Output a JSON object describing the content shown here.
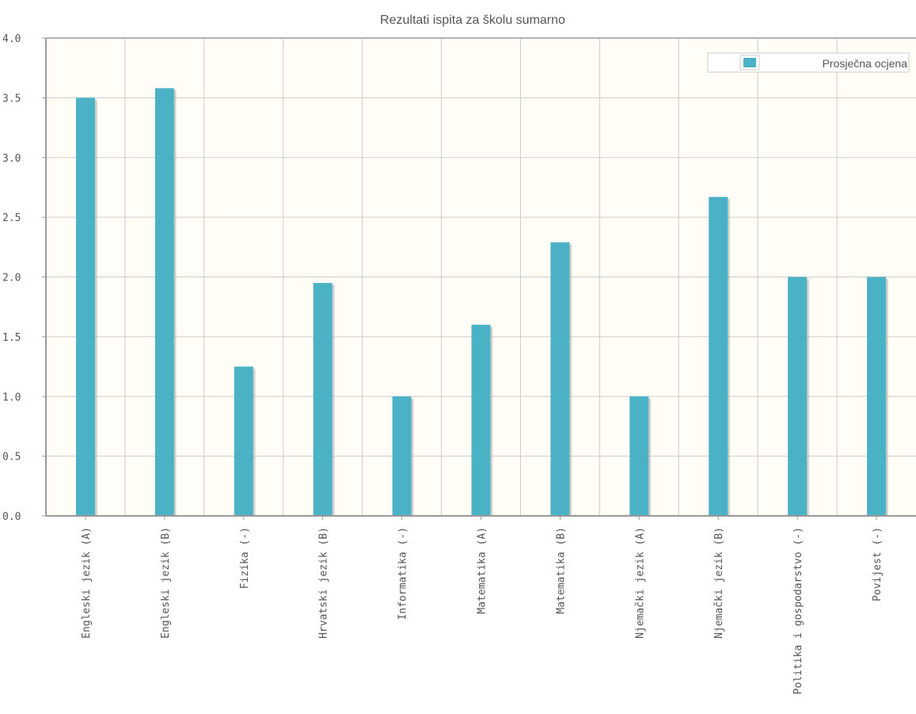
{
  "chart_data": {
    "type": "bar",
    "title": "Rezultati ispita za školu sumarno",
    "xlabel": "",
    "ylabel": "",
    "ylim": [
      0,
      4
    ],
    "yticks": [
      "0.0",
      "0.5",
      "1.0",
      "1.5",
      "2.0",
      "2.5",
      "3.0",
      "3.5",
      "4.0"
    ],
    "grid": true,
    "legend_position": "top-right",
    "categories": [
      "Engleski jezik (A)",
      "Engleski jezik (B)",
      "Fizika (-)",
      "Hrvatski jezik (B)",
      "Informatika (-)",
      "Matematika (A)",
      "Matematika (B)",
      "Njemački jezik (A)",
      "Njemački jezik (B)",
      "Politika i gospodarstvo (-)",
      "Povijest (-)"
    ],
    "series": [
      {
        "name": "Prosječna ocjena",
        "color": "#4bb2c5",
        "values": [
          3.5,
          3.58,
          1.25,
          1.95,
          1.0,
          1.6,
          2.29,
          1.0,
          2.67,
          2.0,
          2.0
        ]
      }
    ],
    "colors": {
      "plot_background": "#fffdf6",
      "grid": "#cccccc",
      "axis": "#999999",
      "shadow": "#aaaaaa"
    }
  }
}
